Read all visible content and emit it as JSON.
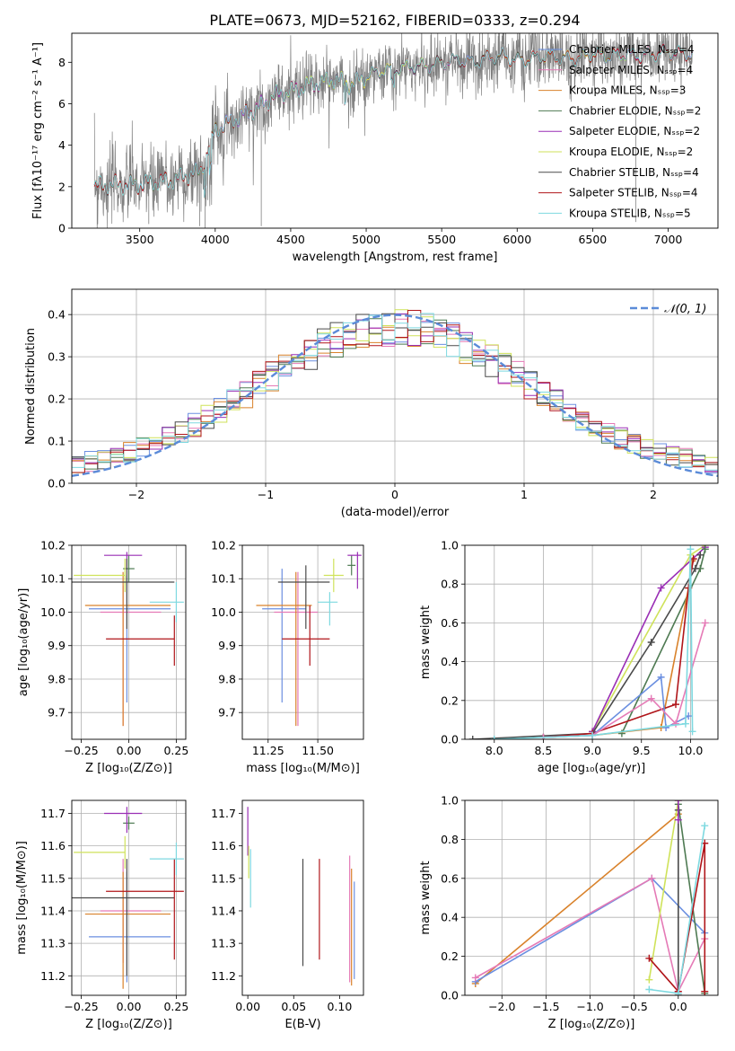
{
  "figure": {
    "title": "PLATE=0673, MJD=52162, FIBERID=0333, z=0.294"
  },
  "colors": {
    "chabrier_miles": "#6b8fe0",
    "salpeter_miles": "#e57ab6",
    "kroupa_miles": "#d9822b",
    "chabrier_elodie": "#4e7a52",
    "salpeter_elodie": "#9a2fb5",
    "kroupa_elodie": "#cfe25a",
    "chabrier_stelib": "#4a4a4a",
    "salpeter_stelib": "#b0151a",
    "kroupa_stelib": "#7ed9e0",
    "data": "#808080",
    "normal": "#5b8bd8",
    "grid": "#b0b0b0"
  },
  "chart_data": [
    {
      "id": "spectrum",
      "type": "line",
      "xlabel": "wavelength [Angstrom, rest frame]",
      "ylabel": "Flux [fλ10⁻¹⁷ erg cm⁻² s⁻¹ A⁻¹]",
      "xlim": [
        3050,
        7330
      ],
      "ylim": [
        0,
        9.4
      ],
      "xticks": [
        3500,
        4000,
        4500,
        5000,
        5500,
        6000,
        6500,
        7000
      ],
      "yticks": [
        0,
        2,
        4,
        6,
        8
      ],
      "grid": false,
      "legend_position": "top-right",
      "continuum": {
        "x": [
          3200,
          3300,
          3400,
          3500,
          3600,
          3700,
          3800,
          3900,
          4000,
          4100,
          4200,
          4300,
          4400,
          4500,
          4600,
          4700,
          4800,
          4900,
          5000,
          5100,
          5200,
          5300,
          5400,
          5500,
          5600,
          5700,
          5800,
          5900,
          6000,
          6100,
          6200,
          6300,
          6400,
          6500,
          6600,
          6700,
          6800,
          6900,
          7000,
          7100
        ],
        "y": [
          2.0,
          2.1,
          2.1,
          2.1,
          2.2,
          2.3,
          2.5,
          2.7,
          4.8,
          5.1,
          5.5,
          5.9,
          6.4,
          6.6,
          6.9,
          7.0,
          7.2,
          6.9,
          7.3,
          7.6,
          7.7,
          7.8,
          7.8,
          8.0,
          8.1,
          8.0,
          8.2,
          8.3,
          8.1,
          8.2,
          8.3,
          8.2,
          8.2,
          8.4,
          8.3,
          8.4,
          8.3,
          8.4,
          8.5,
          8.4
        ]
      },
      "series": [
        {
          "name": "Chabrier MILES, Nₛₛₚ=4",
          "color_key": "chabrier_miles"
        },
        {
          "name": "Salpeter MILES, Nₛₛₚ=4",
          "color_key": "salpeter_miles"
        },
        {
          "name": "Kroupa MILES, Nₛₛₚ=3",
          "color_key": "kroupa_miles"
        },
        {
          "name": "Chabrier ELODIE, Nₛₛₚ=2",
          "color_key": "chabrier_elodie"
        },
        {
          "name": "Salpeter ELODIE, Nₛₛₚ=2",
          "color_key": "salpeter_elodie"
        },
        {
          "name": "Kroupa ELODIE, Nₛₛₚ=2",
          "color_key": "kroupa_elodie"
        },
        {
          "name": "Chabrier STELIB, Nₛₛₚ=4",
          "color_key": "chabrier_stelib"
        },
        {
          "name": "Salpeter STELIB, Nₛₛₚ=4",
          "color_key": "salpeter_stelib"
        },
        {
          "name": "Kroupa STELIB, Nₛₛₚ=5",
          "color_key": "kroupa_stelib"
        }
      ]
    },
    {
      "id": "residuals",
      "type": "area",
      "xlabel": "(data-model)/error",
      "ylabel": "Normed distribution",
      "xlim": [
        -2.5,
        2.5
      ],
      "ylim": [
        0,
        0.46
      ],
      "xticks": [
        -2,
        -1,
        0,
        1,
        2
      ],
      "yticks": [
        0.0,
        0.1,
        0.2,
        0.3,
        0.4
      ],
      "grid": true,
      "legend": "𝒩(0, 1)",
      "legend_position": "top-right",
      "bin_edges_start": -2.5,
      "bin_width": 0.1
    },
    {
      "id": "age_vs_z",
      "type": "scatter",
      "xlabel": "Z [log₁₀(Z/Z⊙)]",
      "ylabel": "age [log₁₀(age/yr)]",
      "xlim": [
        -0.3,
        0.3
      ],
      "ylim": [
        9.62,
        10.2
      ],
      "xticks": [
        -0.25,
        0.0,
        0.25
      ],
      "yticks": [
        9.7,
        9.8,
        9.9,
        10.0,
        10.1,
        10.2
      ],
      "grid": true,
      "points": [
        {
          "key": "chabrier_miles",
          "x": -0.01,
          "xerr": [
            0.2,
            0.23
          ],
          "y": 10.01,
          "yerr": [
            0.28,
            0.1
          ]
        },
        {
          "key": "salpeter_miles",
          "x": -0.03,
          "xerr": [
            0.12,
            0.2
          ],
          "y": 10.0,
          "yerr": [
            0.34,
            0.08
          ]
        },
        {
          "key": "kroupa_miles",
          "x": -0.03,
          "xerr": [
            0.2,
            0.25
          ],
          "y": 10.02,
          "yerr": [
            0.36,
            0.1
          ]
        },
        {
          "key": "chabrier_elodie",
          "x": 0.0,
          "xerr": [
            0.03,
            0.03
          ],
          "y": 10.13,
          "yerr": [
            0.04,
            0.04
          ]
        },
        {
          "key": "salpeter_elodie",
          "x": -0.01,
          "xerr": [
            0.12,
            0.08
          ],
          "y": 10.17,
          "yerr": [
            0.04,
            0.01
          ]
        },
        {
          "key": "kroupa_elodie",
          "x": -0.02,
          "xerr": [
            0.27,
            0.0
          ],
          "y": 10.11,
          "yerr": [
            0.05,
            0.05
          ]
        },
        {
          "key": "chabrier_stelib",
          "x": -0.01,
          "xerr": [
            0.29,
            0.25
          ],
          "y": 10.09,
          "yerr": [
            0.14,
            0.07
          ]
        },
        {
          "key": "salpeter_stelib",
          "x": 0.24,
          "xerr": [
            0.36,
            0.0
          ],
          "y": 9.92,
          "yerr": [
            0.08,
            0.07
          ]
        },
        {
          "key": "kroupa_stelib",
          "x": 0.25,
          "xerr": [
            0.14,
            0.04
          ],
          "y": 10.03,
          "yerr": [
            0.06,
            0.06
          ]
        }
      ]
    },
    {
      "id": "age_vs_mass",
      "type": "scatter",
      "xlabel": "mass [log₁₀(M/M⊙)]",
      "ylabel": "",
      "xlim": [
        11.12,
        11.73
      ],
      "ylim": [
        9.62,
        10.2
      ],
      "xticks": [
        11.25,
        11.5
      ],
      "yticks": [
        9.7,
        9.8,
        9.9,
        10.0,
        10.1,
        10.2
      ],
      "grid": true,
      "points": [
        {
          "key": "chabrier_miles",
          "x": 11.32,
          "xerr": [
            0.1,
            0.12
          ],
          "y": 10.01,
          "yerr": [
            0.28,
            0.12
          ]
        },
        {
          "key": "salpeter_miles",
          "x": 11.4,
          "xerr": [
            0.12,
            0.1
          ],
          "y": 10.0,
          "yerr": [
            0.34,
            0.12
          ]
        },
        {
          "key": "kroupa_miles",
          "x": 11.39,
          "xerr": [
            0.2,
            0.08
          ],
          "y": 10.02,
          "yerr": [
            0.36,
            0.1
          ]
        },
        {
          "key": "chabrier_elodie",
          "x": 11.67,
          "xerr": [
            0.02,
            0.02
          ],
          "y": 10.14,
          "yerr": [
            0.03,
            0.03
          ]
        },
        {
          "key": "salpeter_elodie",
          "x": 11.7,
          "xerr": [
            0.05,
            0.02
          ],
          "y": 10.17,
          "yerr": [
            0.1,
            0.01
          ]
        },
        {
          "key": "kroupa_elodie",
          "x": 11.58,
          "xerr": [
            0.05,
            0.05
          ],
          "y": 10.11,
          "yerr": [
            0.05,
            0.05
          ]
        },
        {
          "key": "chabrier_stelib",
          "x": 11.44,
          "xerr": [
            0.14,
            0.12
          ],
          "y": 10.09,
          "yerr": [
            0.14,
            0.05
          ]
        },
        {
          "key": "salpeter_stelib",
          "x": 11.46,
          "xerr": [
            0.14,
            0.1
          ],
          "y": 9.92,
          "yerr": [
            0.08,
            0.1
          ]
        },
        {
          "key": "kroupa_stelib",
          "x": 11.56,
          "xerr": [
            0.06,
            0.04
          ],
          "y": 10.03,
          "yerr": [
            0.07,
            0.03
          ]
        }
      ]
    },
    {
      "id": "weight_vs_age",
      "type": "line",
      "xlabel": "age  [log₁₀(age/yr)]",
      "ylabel": "mass weight",
      "xlim": [
        7.7,
        10.28
      ],
      "ylim": [
        0.0,
        1.0
      ],
      "xticks": [
        8.0,
        8.5,
        9.0,
        9.5,
        10.0
      ],
      "yticks": [
        0.0,
        0.2,
        0.4,
        0.6,
        0.8,
        1.0
      ],
      "grid": true,
      "series": [
        {
          "key": "kroupa_elodie",
          "x": [
            9.0,
            10.0,
            10.15
          ],
          "y": [
            0.04,
            0.95,
            1.0
          ]
        },
        {
          "key": "salpeter_elodie",
          "x": [
            9.0,
            9.7,
            10.15
          ],
          "y": [
            0.04,
            0.78,
            0.99
          ]
        },
        {
          "key": "chabrier_elodie",
          "x": [
            9.3,
            10.1,
            10.15
          ],
          "y": [
            0.03,
            0.88,
            0.98
          ]
        },
        {
          "key": "chabrier_stelib",
          "x": [
            7.78,
            9.0,
            9.6,
            10.05,
            10.1
          ],
          "y": [
            0.0,
            0.03,
            0.5,
            0.88,
            0.95
          ]
        },
        {
          "key": "kroupa_miles",
          "x": [
            8.5,
            9.0,
            9.7,
            9.98,
            10.02
          ],
          "y": [
            0.01,
            0.02,
            0.06,
            0.78,
            0.92
          ]
        },
        {
          "key": "salpeter_stelib",
          "x": [
            8.5,
            9.0,
            9.85,
            9.98,
            10.03
          ],
          "y": [
            0.01,
            0.03,
            0.18,
            0.78,
            0.93
          ]
        },
        {
          "key": "chabrier_miles",
          "x": [
            8.5,
            9.0,
            9.7,
            9.75,
            9.98
          ],
          "y": [
            0.01,
            0.02,
            0.32,
            0.06,
            0.12
          ]
        },
        {
          "key": "salpeter_miles",
          "x": [
            8.5,
            9.0,
            9.6,
            9.85,
            10.15
          ],
          "y": [
            0.01,
            0.02,
            0.21,
            0.08,
            0.6
          ]
        },
        {
          "key": "kroupa_stelib",
          "x": [
            8.0,
            9.0,
            9.95,
            10.0,
            10.02
          ],
          "y": [
            0.0,
            0.02,
            0.08,
            0.98,
            0.04
          ]
        }
      ]
    },
    {
      "id": "mass_vs_z",
      "type": "scatter",
      "xlabel": "Z [log₁₀(Z/Z⊙)]",
      "ylabel": "mass [log₁₀(M/M⊙)]",
      "xlim": [
        -0.3,
        0.3
      ],
      "ylim": [
        11.14,
        11.74
      ],
      "xticks": [
        -0.25,
        0.0,
        0.25
      ],
      "yticks": [
        11.2,
        11.3,
        11.4,
        11.5,
        11.6,
        11.7
      ],
      "grid": true,
      "points": [
        {
          "key": "chabrier_miles",
          "x": -0.01,
          "xerr": [
            0.2,
            0.23
          ],
          "y": 11.32,
          "yerr": [
            0.14,
            0.2
          ]
        },
        {
          "key": "salpeter_miles",
          "x": -0.03,
          "xerr": [
            0.12,
            0.2
          ],
          "y": 11.4,
          "yerr": [
            0.16,
            0.16
          ]
        },
        {
          "key": "kroupa_miles",
          "x": -0.03,
          "xerr": [
            0.2,
            0.25
          ],
          "y": 11.39,
          "yerr": [
            0.23,
            0.13
          ]
        },
        {
          "key": "chabrier_elodie",
          "x": 0.0,
          "xerr": [
            0.03,
            0.03
          ],
          "y": 11.67,
          "yerr": [
            0.02,
            0.02
          ]
        },
        {
          "key": "salpeter_elodie",
          "x": -0.01,
          "xerr": [
            0.12,
            0.08
          ],
          "y": 11.7,
          "yerr": [
            0.06,
            0.02
          ]
        },
        {
          "key": "kroupa_elodie",
          "x": -0.02,
          "xerr": [
            0.27,
            0.0
          ],
          "y": 11.58,
          "yerr": [
            0.05,
            0.05
          ]
        },
        {
          "key": "chabrier_stelib",
          "x": -0.01,
          "xerr": [
            0.29,
            0.25
          ],
          "y": 11.44,
          "yerr": [
            0.24,
            0.12
          ]
        },
        {
          "key": "salpeter_stelib",
          "x": 0.24,
          "xerr": [
            0.36,
            0.05
          ],
          "y": 11.46,
          "yerr": [
            0.21,
            0.1
          ]
        },
        {
          "key": "kroupa_stelib",
          "x": 0.25,
          "xerr": [
            0.14,
            0.04
          ],
          "y": 11.56,
          "yerr": [
            0.05,
            0.05
          ]
        }
      ]
    },
    {
      "id": "mass_vs_ebv",
      "type": "scatter",
      "xlabel": "E(B-V)",
      "ylabel": "",
      "xlim": [
        -0.006,
        0.126
      ],
      "ylim": [
        11.14,
        11.74
      ],
      "xticks": [
        0.0,
        0.05,
        0.1
      ],
      "yticks": [
        11.2,
        11.3,
        11.4,
        11.5,
        11.6,
        11.7
      ],
      "grid": false,
      "points": [
        {
          "key": "salpeter_elodie",
          "x": 0.0,
          "xerr": [
            0,
            0
          ],
          "y": 11.64,
          "yerr": [
            0.07,
            0.08
          ]
        },
        {
          "key": "kroupa_elodie",
          "x": 0.001,
          "xerr": [
            0,
            0
          ],
          "y": 11.55,
          "yerr": [
            0.05,
            0.05
          ]
        },
        {
          "key": "kroupa_stelib",
          "x": 0.003,
          "xerr": [
            0,
            0
          ],
          "y": 11.5,
          "yerr": [
            0.09,
            0.09
          ]
        },
        {
          "key": "chabrier_stelib",
          "x": 0.06,
          "xerr": [
            0,
            0
          ],
          "y": 11.39,
          "yerr": [
            0.16,
            0.17
          ]
        },
        {
          "key": "salpeter_stelib",
          "x": 0.078,
          "xerr": [
            0,
            0
          ],
          "y": 11.4,
          "yerr": [
            0.15,
            0.16
          ]
        },
        {
          "key": "salpeter_miles",
          "x": 0.111,
          "xerr": [
            0,
            0
          ],
          "y": 11.39,
          "yerr": [
            0.21,
            0.18
          ]
        },
        {
          "key": "kroupa_miles",
          "x": 0.113,
          "xerr": [
            0,
            0
          ],
          "y": 11.37,
          "yerr": [
            0.2,
            0.16
          ]
        },
        {
          "key": "chabrier_miles",
          "x": 0.116,
          "xerr": [
            0,
            0
          ],
          "y": 11.34,
          "yerr": [
            0.15,
            0.15
          ]
        }
      ]
    },
    {
      "id": "weight_vs_z",
      "type": "line",
      "xlabel": "Z [log₁₀(Z/Z⊙)]",
      "ylabel": "mass weight",
      "xlim": [
        -2.42,
        0.45
      ],
      "ylim": [
        0.0,
        1.0
      ],
      "xticks": [
        -2.0,
        -1.5,
        -1.0,
        -0.5,
        0.0
      ],
      "yticks": [
        0.0,
        0.2,
        0.4,
        0.6,
        0.8,
        1.0
      ],
      "grid": true,
      "series": [
        {
          "key": "kroupa_miles",
          "x": [
            -2.3,
            0.0
          ],
          "y": [
            0.06,
            0.93
          ]
        },
        {
          "key": "chabrier_miles",
          "x": [
            -2.3,
            -0.3,
            0.3
          ],
          "y": [
            0.07,
            0.6,
            0.32
          ]
        },
        {
          "key": "salpeter_miles",
          "x": [
            -2.3,
            -0.3,
            0.0,
            0.3
          ],
          "y": [
            0.09,
            0.6,
            0.02,
            0.29
          ]
        },
        {
          "key": "kroupa_elodie",
          "x": [
            -0.33,
            0.0
          ],
          "y": [
            0.08,
            1.0
          ]
        },
        {
          "key": "chabrier_elodie",
          "x": [
            0.0,
            0.3
          ],
          "y": [
            0.98,
            0.01
          ]
        },
        {
          "key": "chabrier_stelib",
          "x": [
            0.0,
            0.0
          ],
          "y": [
            0.0,
            0.95
          ]
        },
        {
          "key": "salpeter_stelib",
          "x": [
            -0.33,
            0.0,
            0.3,
            0.3
          ],
          "y": [
            0.19,
            0.02,
            0.78,
            0.02
          ]
        },
        {
          "key": "kroupa_stelib",
          "x": [
            -0.33,
            0.0,
            0.3
          ],
          "y": [
            0.03,
            0.01,
            0.87
          ]
        },
        {
          "key": "salpeter_elodie",
          "x": [
            0.0,
            0.0
          ],
          "y": [
            0.9,
            1.0
          ]
        }
      ]
    }
  ]
}
